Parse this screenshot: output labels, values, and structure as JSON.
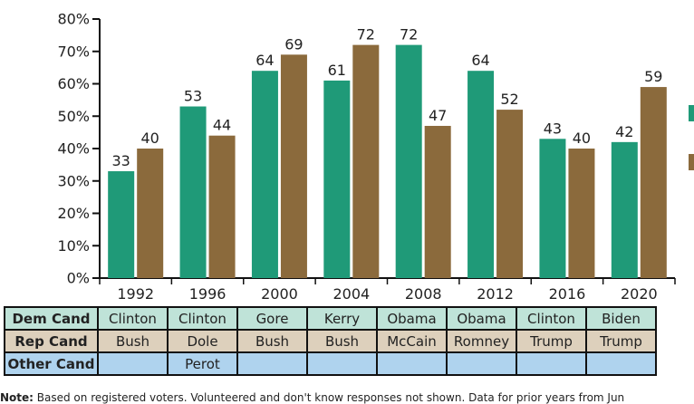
{
  "colors": {
    "dem": "#1f9a78",
    "rep": "#8b6a3c",
    "axis": "#111111"
  },
  "chart_data": {
    "type": "bar",
    "categories": [
      "1992",
      "1996",
      "2000",
      "2004",
      "2008",
      "2012",
      "2016",
      "2020"
    ],
    "series": [
      {
        "values": [
          33,
          53,
          64,
          61,
          72,
          64,
          43,
          42
        ]
      },
      {
        "values": [
          40,
          44,
          69,
          72,
          47,
          52,
          40,
          59
        ]
      }
    ],
    "ylim": [
      0,
      80
    ],
    "yticks": [
      "0%",
      "10%",
      "20%",
      "30%",
      "40%",
      "50%",
      "60%",
      "70%",
      "80%"
    ],
    "grid": false,
    "legend": "right"
  },
  "table": {
    "rows": [
      {
        "header": "Dem Cand",
        "cells": [
          "Clinton",
          "Clinton",
          "Gore",
          "Kerry",
          "Obama",
          "Obama",
          "Clinton",
          "Biden"
        ]
      },
      {
        "header": "Rep Cand",
        "cells": [
          "Bush",
          "Dole",
          "Bush",
          "Bush",
          "McCain",
          "Romney",
          "Trump",
          "Trump"
        ]
      },
      {
        "header": "Other Cand",
        "cells": [
          "",
          "Perot",
          "",
          "",
          "",
          "",
          "",
          ""
        ]
      }
    ]
  },
  "note": {
    "label": "Note:",
    "text": " Based on registered voters. Volunteered and don't know responses not shown. Data for prior years from Jun"
  }
}
